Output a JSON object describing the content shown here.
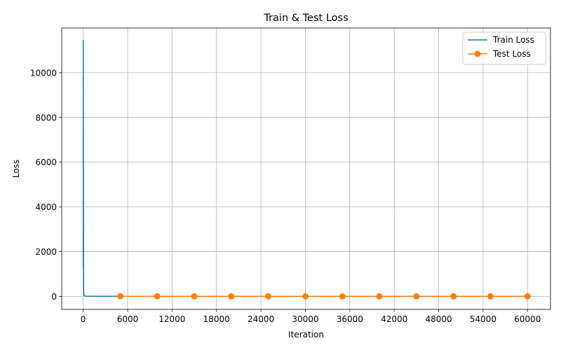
{
  "chart_data": {
    "type": "line",
    "title": "Train & Test Loss",
    "xlabel": "Iteration",
    "ylabel": "Loss",
    "xlim": [
      -2900,
      63100
    ],
    "ylim": [
      -580,
      12000
    ],
    "xticks": [
      0,
      6000,
      12000,
      18000,
      24000,
      30000,
      36000,
      42000,
      48000,
      54000,
      60000
    ],
    "yticks": [
      0,
      2000,
      4000,
      6000,
      8000,
      10000
    ],
    "grid": true,
    "legend_position": "top-right",
    "series": [
      {
        "name": "Train Loss",
        "color": "#1f77b4",
        "marker": "none",
        "x": [
          0,
          10,
          20,
          30,
          40,
          50,
          60,
          80,
          100,
          150,
          200,
          300,
          500,
          1000,
          2000,
          5000,
          10000,
          20000,
          30000,
          40000,
          50000,
          60000
        ],
        "y": [
          1300,
          11450,
          9000,
          6500,
          3500,
          1500,
          300,
          150,
          80,
          40,
          25,
          15,
          10,
          8,
          6,
          5,
          4,
          3,
          3,
          2,
          2,
          2
        ]
      },
      {
        "name": "Test Loss",
        "color": "#ff7f0e",
        "marker": "circle",
        "x": [
          5000,
          10000,
          15000,
          20000,
          25000,
          30000,
          35000,
          40000,
          45000,
          50000,
          55000,
          60000
        ],
        "y": [
          5,
          4,
          4,
          3,
          3,
          3,
          3,
          2,
          2,
          2,
          2,
          2
        ]
      }
    ]
  }
}
